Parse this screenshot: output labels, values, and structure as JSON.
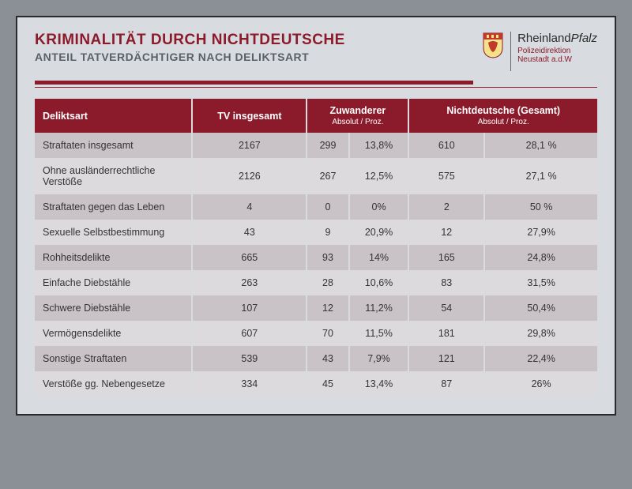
{
  "colors": {
    "accent": "#8b1a2b",
    "page_bg": "#d8dce0",
    "outer_bg": "#8a9095",
    "row_odd": "#c9c2c6",
    "row_even": "#dcdadd",
    "text": "#333333",
    "subtitle": "#5b6066"
  },
  "header": {
    "title": "KRIMINALITÄT DURCH NICHTDEUTSCHE",
    "subtitle": "ANTEIL TATVERDÄCHTIGER NACH DELIKTSART"
  },
  "brand": {
    "line1_a": "Rheinland",
    "line1_b": "Pfalz",
    "line2": "Polizeidirektion",
    "line3": "Neustadt a.d.W"
  },
  "table": {
    "columns": {
      "c0": "Deliktsart",
      "c1": "TV insgesamt",
      "c2": "Zuwanderer",
      "c2_sub": "Absolut     /     Proz.",
      "c3": "Nichtdeutsche (Gesamt)",
      "c3_sub": "Absolut     /     Proz."
    },
    "rows": [
      {
        "label": "Straftaten insgesamt",
        "tv": "2167",
        "z_abs": "299",
        "z_pct": "13,8%",
        "n_abs": "610",
        "n_pct": "28,1 %"
      },
      {
        "label": "Ohne ausländerrechtliche Verstöße",
        "tv": "2126",
        "z_abs": "267",
        "z_pct": "12,5%",
        "n_abs": "575",
        "n_pct": "27,1 %"
      },
      {
        "label": "Straftaten gegen das Leben",
        "tv": "4",
        "z_abs": "0",
        "z_pct": "0%",
        "n_abs": "2",
        "n_pct": "50 %"
      },
      {
        "label": "Sexuelle Selbstbestimmung",
        "tv": "43",
        "z_abs": "9",
        "z_pct": "20,9%",
        "n_abs": "12",
        "n_pct": "27,9%"
      },
      {
        "label": "Rohheitsdelikte",
        "tv": "665",
        "z_abs": "93",
        "z_pct": "14%",
        "n_abs": "165",
        "n_pct": "24,8%"
      },
      {
        "label": "Einfache Diebstähle",
        "tv": "263",
        "z_abs": "28",
        "z_pct": "10,6%",
        "n_abs": "83",
        "n_pct": "31,5%"
      },
      {
        "label": "Schwere Diebstähle",
        "tv": "107",
        "z_abs": "12",
        "z_pct": "11,2%",
        "n_abs": "54",
        "n_pct": "50,4%"
      },
      {
        "label": "Vermögensdelikte",
        "tv": "607",
        "z_abs": "70",
        "z_pct": "11,5%",
        "n_abs": "181",
        "n_pct": "29,8%"
      },
      {
        "label": "Sonstige  Straftaten",
        "tv": "539",
        "z_abs": "43",
        "z_pct": "7,9%",
        "n_abs": "121",
        "n_pct": "22,4%"
      },
      {
        "label": "Verstöße gg. Nebengesetze",
        "tv": "334",
        "z_abs": "45",
        "z_pct": "13,4%",
        "n_abs": "87",
        "n_pct": "26%"
      }
    ]
  }
}
